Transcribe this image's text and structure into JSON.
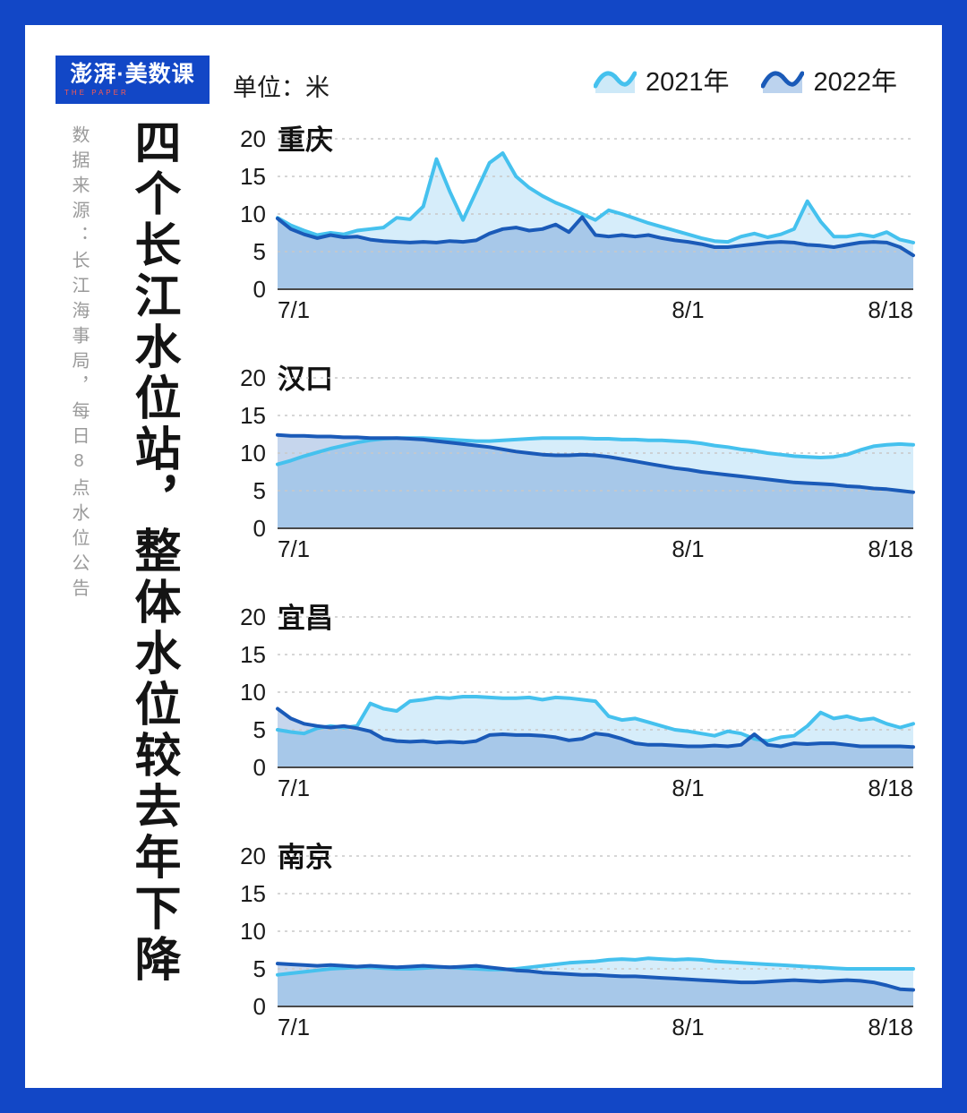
{
  "meta": {
    "logo": "澎湃·美数课",
    "logo_sub": "THE PAPER",
    "source": "数据来源：长江海事局，每日8点水位公告",
    "title": "四个长江水位站，整体水位较去年下降",
    "unit_label": "单位：米"
  },
  "legend": [
    {
      "label": "2021年",
      "color": "#45C1EE",
      "fill": "#CDE9F8"
    },
    {
      "label": "2022年",
      "color": "#1A5AB8",
      "fill": "#BCD3EE"
    }
  ],
  "colors": {
    "frame": "#1247C6",
    "light_line": "#45C1EE",
    "dark_line": "#1A5AB8",
    "light_fill": "#D6EDFA",
    "dark_fill": "rgba(26,90,184,0.25)",
    "grid": "#C8C8C8",
    "axis": "#4a4a4a"
  },
  "chart_data": [
    {
      "type": "area",
      "title": "重庆",
      "ylim": [
        0,
        20
      ],
      "y_ticks": [
        0,
        5,
        10,
        15,
        20
      ],
      "x_ticks": [
        {
          "label": "7/1",
          "day": 0
        },
        {
          "label": "8/1",
          "day": 31
        },
        {
          "label": "8/18",
          "day": 48
        }
      ],
      "series": [
        {
          "name": "2021年",
          "values": [
            9.5,
            8.5,
            7.8,
            7.2,
            7.5,
            7.3,
            7.8,
            8.0,
            8.2,
            9.5,
            9.3,
            11.0,
            17.3,
            13.0,
            9.2,
            13.0,
            16.8,
            18.1,
            15.0,
            13.5,
            12.4,
            11.5,
            10.8,
            10.0,
            9.2,
            10.5,
            10.0,
            9.4,
            8.8,
            8.3,
            7.8,
            7.3,
            6.8,
            6.4,
            6.3,
            7.0,
            7.4,
            6.9,
            7.3,
            8.0,
            11.7,
            9.0,
            7.0,
            7.0,
            7.3,
            7.0,
            7.6,
            6.6,
            6.2
          ]
        },
        {
          "name": "2022年",
          "values": [
            9.4,
            8.0,
            7.3,
            6.8,
            7.2,
            6.9,
            7.0,
            6.6,
            6.4,
            6.3,
            6.2,
            6.3,
            6.2,
            6.4,
            6.3,
            6.5,
            7.4,
            8.0,
            8.2,
            7.8,
            8.0,
            8.6,
            7.6,
            9.6,
            7.2,
            7.0,
            7.2,
            7.0,
            7.2,
            6.8,
            6.5,
            6.3,
            6.0,
            5.6,
            5.6,
            5.8,
            6.0,
            6.2,
            6.3,
            6.2,
            5.9,
            5.8,
            5.6,
            5.9,
            6.2,
            6.3,
            6.2,
            5.6,
            4.5
          ]
        }
      ]
    },
    {
      "type": "area",
      "title": "汉口",
      "ylim": [
        0,
        20
      ],
      "y_ticks": [
        0,
        5,
        10,
        15,
        20
      ],
      "x_ticks": [
        {
          "label": "7/1",
          "day": 0
        },
        {
          "label": "8/1",
          "day": 31
        },
        {
          "label": "8/18",
          "day": 48
        }
      ],
      "series": [
        {
          "name": "2021年",
          "values": [
            8.5,
            9.0,
            9.6,
            10.1,
            10.6,
            11.0,
            11.4,
            11.7,
            11.9,
            12.0,
            12.0,
            12.0,
            11.9,
            11.8,
            11.7,
            11.6,
            11.6,
            11.7,
            11.8,
            11.9,
            12.0,
            12.0,
            12.0,
            12.0,
            11.9,
            11.9,
            11.8,
            11.8,
            11.7,
            11.7,
            11.6,
            11.5,
            11.3,
            11.0,
            10.8,
            10.5,
            10.3,
            10.0,
            9.8,
            9.6,
            9.5,
            9.4,
            9.5,
            9.8,
            10.4,
            10.9,
            11.1,
            11.2,
            11.1
          ]
        },
        {
          "name": "2022年",
          "values": [
            12.4,
            12.3,
            12.3,
            12.2,
            12.2,
            12.1,
            12.1,
            12.0,
            12.0,
            12.0,
            11.9,
            11.8,
            11.6,
            11.4,
            11.2,
            11.0,
            10.8,
            10.5,
            10.2,
            10.0,
            9.8,
            9.7,
            9.7,
            9.8,
            9.7,
            9.5,
            9.2,
            8.9,
            8.6,
            8.3,
            8.0,
            7.8,
            7.5,
            7.3,
            7.1,
            6.9,
            6.7,
            6.5,
            6.3,
            6.1,
            6.0,
            5.9,
            5.8,
            5.6,
            5.5,
            5.3,
            5.2,
            5.0,
            4.8
          ]
        }
      ]
    },
    {
      "type": "area",
      "title": "宜昌",
      "ylim": [
        0,
        20
      ],
      "y_ticks": [
        0,
        5,
        10,
        15,
        20
      ],
      "x_ticks": [
        {
          "label": "7/1",
          "day": 0
        },
        {
          "label": "8/1",
          "day": 31
        },
        {
          "label": "8/18",
          "day": 48
        }
      ],
      "series": [
        {
          "name": "2021年",
          "values": [
            5.0,
            4.7,
            4.5,
            5.2,
            5.5,
            5.3,
            5.5,
            8.5,
            7.8,
            7.5,
            8.8,
            9.0,
            9.3,
            9.2,
            9.4,
            9.4,
            9.3,
            9.2,
            9.2,
            9.3,
            9.0,
            9.3,
            9.2,
            9.0,
            8.8,
            6.8,
            6.3,
            6.5,
            6.0,
            5.5,
            5.0,
            4.8,
            4.5,
            4.2,
            4.8,
            4.5,
            3.8,
            3.5,
            4.0,
            4.2,
            5.5,
            7.3,
            6.5,
            6.8,
            6.3,
            6.5,
            5.8,
            5.3,
            5.8
          ]
        },
        {
          "name": "2022年",
          "values": [
            7.8,
            6.5,
            5.8,
            5.5,
            5.3,
            5.5,
            5.2,
            4.8,
            3.8,
            3.5,
            3.4,
            3.5,
            3.3,
            3.4,
            3.3,
            3.5,
            4.3,
            4.4,
            4.3,
            4.3,
            4.2,
            4.0,
            3.6,
            3.8,
            4.5,
            4.3,
            3.8,
            3.2,
            3.0,
            3.0,
            2.9,
            2.8,
            2.8,
            2.9,
            2.8,
            3.0,
            4.4,
            3.0,
            2.8,
            3.2,
            3.1,
            3.2,
            3.2,
            3.0,
            2.8,
            2.8,
            2.8,
            2.8,
            2.7
          ]
        }
      ]
    },
    {
      "type": "area",
      "title": "南京",
      "ylim": [
        0,
        20
      ],
      "y_ticks": [
        0,
        5,
        10,
        15,
        20
      ],
      "x_ticks": [
        {
          "label": "7/1",
          "day": 0
        },
        {
          "label": "8/1",
          "day": 31
        },
        {
          "label": "8/18",
          "day": 48
        }
      ],
      "series": [
        {
          "name": "2021年",
          "values": [
            4.2,
            4.4,
            4.6,
            4.8,
            5.0,
            5.1,
            5.2,
            5.2,
            5.1,
            5.0,
            5.0,
            5.1,
            5.2,
            5.2,
            5.1,
            5.0,
            4.9,
            4.9,
            5.0,
            5.2,
            5.4,
            5.6,
            5.8,
            5.9,
            6.0,
            6.2,
            6.3,
            6.2,
            6.4,
            6.3,
            6.2,
            6.3,
            6.2,
            6.0,
            5.9,
            5.8,
            5.7,
            5.6,
            5.5,
            5.4,
            5.3,
            5.2,
            5.1,
            5.0,
            5.0,
            5.0,
            5.0,
            5.0,
            5.0
          ]
        },
        {
          "name": "2022年",
          "values": [
            5.7,
            5.6,
            5.5,
            5.4,
            5.5,
            5.4,
            5.3,
            5.4,
            5.3,
            5.2,
            5.3,
            5.4,
            5.3,
            5.2,
            5.3,
            5.4,
            5.2,
            5.0,
            4.8,
            4.7,
            4.5,
            4.4,
            4.3,
            4.2,
            4.2,
            4.1,
            4.0,
            4.0,
            3.9,
            3.8,
            3.7,
            3.6,
            3.5,
            3.4,
            3.3,
            3.2,
            3.2,
            3.3,
            3.4,
            3.5,
            3.4,
            3.3,
            3.4,
            3.5,
            3.4,
            3.2,
            2.8,
            2.3,
            2.2
          ]
        }
      ]
    }
  ]
}
